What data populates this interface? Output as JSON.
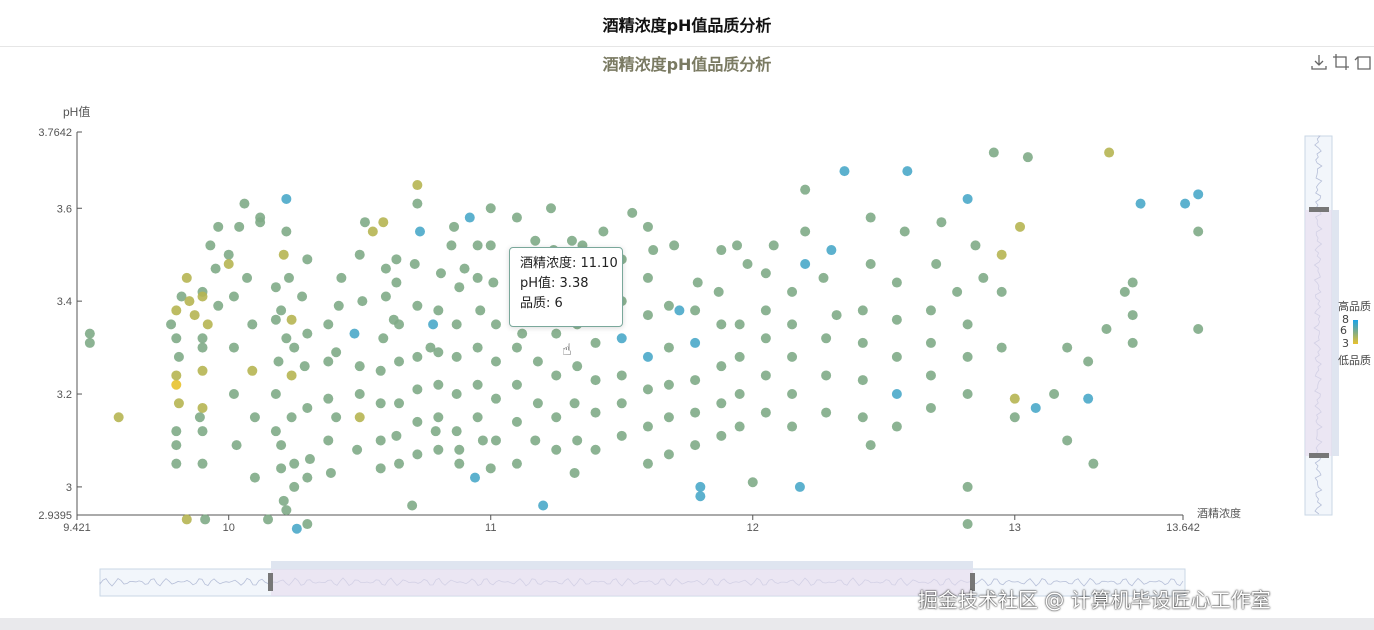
{
  "header": {
    "title": "酒精浓度pH值品质分析"
  },
  "chart_data": {
    "type": "scatter",
    "title": "酒精浓度pH值品质分析",
    "xlabel": "酒精浓度",
    "ylabel": "pH值",
    "xlim": [
      9.421,
      13.642
    ],
    "ylim": [
      2.9395,
      3.7642
    ],
    "x_ticks": [
      "9.421",
      "10",
      "11",
      "12",
      "13",
      "13.642"
    ],
    "y_ticks": [
      "2.9395",
      "3",
      "3.2",
      "3.4",
      "3.6",
      "3.7642"
    ],
    "grid": false,
    "colors": {
      "low": "#e8c22e",
      "mid": "#7fab87",
      "high": "#1aa3e8",
      "axis": "#555555"
    },
    "points": [
      [
        9.47,
        3.33,
        6
      ],
      [
        9.47,
        3.31,
        6
      ],
      [
        9.58,
        3.15,
        5
      ],
      [
        9.8,
        3.32,
        6
      ],
      [
        9.8,
        3.38,
        5
      ],
      [
        9.81,
        3.28,
        6
      ],
      [
        9.8,
        3.22,
        4
      ],
      [
        9.82,
        3.41,
        6
      ],
      [
        9.78,
        3.35,
        6
      ],
      [
        9.8,
        3.12,
        6
      ],
      [
        9.8,
        3.05,
        6
      ],
      [
        9.85,
        3.4,
        5
      ],
      [
        9.84,
        3.45,
        5
      ],
      [
        9.8,
        3.24,
        5
      ],
      [
        9.81,
        3.18,
        5
      ],
      [
        9.8,
        3.09,
        6
      ],
      [
        9.87,
        3.37,
        5
      ],
      [
        9.9,
        3.42,
        6
      ],
      [
        9.9,
        3.3,
        6
      ],
      [
        9.9,
        3.25,
        5
      ],
      [
        9.9,
        3.17,
        5
      ],
      [
        9.9,
        3.12,
        6
      ],
      [
        9.9,
        3.05,
        6
      ],
      [
        9.91,
        2.93,
        6
      ],
      [
        9.9,
        3.32,
        6
      ],
      [
        9.89,
        3.15,
        6
      ],
      [
        9.92,
        3.35,
        5
      ],
      [
        9.93,
        3.52,
        6
      ],
      [
        9.95,
        3.47,
        6
      ],
      [
        9.96,
        3.56,
        6
      ],
      [
        9.96,
        3.39,
        6
      ],
      [
        10.0,
        3.5,
        6
      ],
      [
        10.02,
        3.41,
        6
      ],
      [
        10.02,
        3.3,
        6
      ],
      [
        10.02,
        3.2,
        6
      ],
      [
        10.04,
        3.56,
        6
      ],
      [
        10.03,
        3.09,
        6
      ],
      [
        10.06,
        3.61,
        6
      ],
      [
        10.07,
        3.45,
        6
      ],
      [
        10.09,
        3.35,
        6
      ],
      [
        10.09,
        3.25,
        5
      ],
      [
        10.1,
        3.15,
        6
      ],
      [
        10.1,
        3.02,
        6
      ],
      [
        10.12,
        3.57,
        6
      ],
      [
        10.18,
        3.43,
        6
      ],
      [
        10.18,
        3.36,
        6
      ],
      [
        10.19,
        3.27,
        6
      ],
      [
        10.18,
        3.2,
        6
      ],
      [
        10.18,
        3.12,
        6
      ],
      [
        10.2,
        3.04,
        6
      ],
      [
        10.21,
        2.97,
        6
      ],
      [
        10.22,
        3.32,
        6
      ],
      [
        10.2,
        3.38,
        6
      ],
      [
        10.21,
        3.5,
        5
      ],
      [
        10.2,
        3.09,
        6
      ],
      [
        10.22,
        3.55,
        6
      ],
      [
        10.23,
        3.45,
        6
      ],
      [
        10.25,
        3.3,
        6
      ],
      [
        10.24,
        3.24,
        5
      ],
      [
        10.24,
        3.15,
        6
      ],
      [
        10.25,
        3.05,
        6
      ],
      [
        10.25,
        3.0,
        6
      ],
      [
        10.22,
        3.62,
        7
      ],
      [
        10.24,
        3.36,
        5
      ],
      [
        10.3,
        3.49,
        6
      ],
      [
        10.3,
        3.33,
        6
      ],
      [
        10.3,
        3.17,
        6
      ],
      [
        10.31,
        3.06,
        6
      ],
      [
        10.3,
        3.02,
        6
      ],
      [
        10.28,
        3.41,
        6
      ],
      [
        10.29,
        3.26,
        6
      ],
      [
        10.38,
        3.35,
        6
      ],
      [
        10.38,
        3.27,
        6
      ],
      [
        10.38,
        3.19,
        6
      ],
      [
        10.38,
        3.1,
        6
      ],
      [
        10.39,
        3.03,
        6
      ],
      [
        10.41,
        3.15,
        6
      ],
      [
        10.41,
        3.29,
        6
      ],
      [
        10.43,
        3.45,
        6
      ],
      [
        10.42,
        3.39,
        6
      ],
      [
        10.5,
        3.26,
        6
      ],
      [
        10.5,
        3.2,
        6
      ],
      [
        10.5,
        3.15,
        5
      ],
      [
        10.49,
        3.08,
        6
      ],
      [
        10.48,
        3.33,
        7
      ],
      [
        10.51,
        3.4,
        6
      ],
      [
        10.5,
        3.5,
        6
      ],
      [
        10.52,
        3.57,
        6
      ],
      [
        10.58,
        3.25,
        6
      ],
      [
        10.58,
        3.18,
        6
      ],
      [
        10.58,
        3.1,
        6
      ],
      [
        10.58,
        3.04,
        6
      ],
      [
        10.59,
        3.32,
        6
      ],
      [
        10.6,
        3.41,
        6
      ],
      [
        10.6,
        3.47,
        6
      ],
      [
        10.59,
        3.57,
        5
      ],
      [
        10.65,
        3.35,
        6
      ],
      [
        10.65,
        3.27,
        6
      ],
      [
        10.65,
        3.18,
        6
      ],
      [
        10.64,
        3.11,
        6
      ],
      [
        10.65,
        3.05,
        6
      ],
      [
        10.64,
        3.49,
        6
      ],
      [
        10.64,
        3.44,
        6
      ],
      [
        10.63,
        3.36,
        6
      ],
      [
        10.72,
        3.28,
        6
      ],
      [
        10.72,
        3.21,
        6
      ],
      [
        10.72,
        3.14,
        6
      ],
      [
        10.72,
        3.07,
        6
      ],
      [
        10.72,
        3.39,
        6
      ],
      [
        10.71,
        3.48,
        6
      ],
      [
        10.73,
        3.55,
        7
      ],
      [
        10.72,
        3.65,
        5
      ],
      [
        10.72,
        3.61,
        6
      ],
      [
        10.8,
        3.38,
        6
      ],
      [
        10.8,
        3.29,
        6
      ],
      [
        10.8,
        3.22,
        6
      ],
      [
        10.8,
        3.15,
        6
      ],
      [
        10.8,
        3.08,
        6
      ],
      [
        10.81,
        3.46,
        6
      ],
      [
        10.78,
        3.35,
        7
      ],
      [
        10.79,
        3.12,
        6
      ],
      [
        10.87,
        3.35,
        6
      ],
      [
        10.87,
        3.28,
        6
      ],
      [
        10.87,
        3.2,
        6
      ],
      [
        10.87,
        3.12,
        6
      ],
      [
        10.88,
        3.05,
        6
      ],
      [
        10.88,
        3.43,
        6
      ],
      [
        10.86,
        3.56,
        6
      ],
      [
        10.9,
        3.47,
        6
      ],
      [
        10.95,
        3.3,
        6
      ],
      [
        10.95,
        3.22,
        6
      ],
      [
        10.95,
        3.15,
        6
      ],
      [
        10.94,
        3.02,
        7
      ],
      [
        10.96,
        3.38,
        6
      ],
      [
        10.95,
        3.45,
        6
      ],
      [
        10.95,
        3.52,
        6
      ],
      [
        10.97,
        3.1,
        6
      ],
      [
        11.02,
        3.35,
        6
      ],
      [
        11.02,
        3.27,
        6
      ],
      [
        11.02,
        3.19,
        6
      ],
      [
        11.02,
        3.1,
        6
      ],
      [
        11.01,
        3.44,
        6
      ],
      [
        11.0,
        3.52,
        6
      ],
      [
        11.0,
        3.04,
        6
      ],
      [
        11.1,
        3.38,
        6
      ],
      [
        11.1,
        3.3,
        6
      ],
      [
        11.1,
        3.22,
        6
      ],
      [
        11.1,
        3.14,
        6
      ],
      [
        11.1,
        3.05,
        6
      ],
      [
        11.09,
        3.46,
        6
      ],
      [
        11.1,
        3.58,
        6
      ],
      [
        11.18,
        3.36,
        6
      ],
      [
        11.18,
        3.27,
        6
      ],
      [
        11.18,
        3.18,
        6
      ],
      [
        11.17,
        3.1,
        6
      ],
      [
        11.18,
        3.45,
        6
      ],
      [
        11.2,
        2.96,
        7
      ],
      [
        11.17,
        3.53,
        6
      ],
      [
        11.25,
        3.33,
        6
      ],
      [
        11.25,
        3.24,
        6
      ],
      [
        11.25,
        3.15,
        6
      ],
      [
        11.25,
        3.08,
        6
      ],
      [
        11.25,
        3.42,
        6
      ],
      [
        11.24,
        3.51,
        6
      ],
      [
        11.33,
        3.35,
        6
      ],
      [
        11.33,
        3.26,
        6
      ],
      [
        11.32,
        3.18,
        6
      ],
      [
        11.33,
        3.1,
        6
      ],
      [
        11.33,
        3.43,
        6
      ],
      [
        11.31,
        3.53,
        6
      ],
      [
        11.32,
        3.03,
        6
      ],
      [
        11.4,
        3.31,
        6
      ],
      [
        11.4,
        3.23,
        6
      ],
      [
        11.4,
        3.16,
        6
      ],
      [
        11.4,
        3.08,
        6
      ],
      [
        11.4,
        3.39,
        6
      ],
      [
        11.4,
        3.48,
        6
      ],
      [
        11.43,
        3.55,
        6
      ],
      [
        11.5,
        3.32,
        7
      ],
      [
        11.5,
        3.24,
        6
      ],
      [
        11.5,
        3.18,
        6
      ],
      [
        11.5,
        3.11,
        6
      ],
      [
        11.5,
        3.4,
        6
      ],
      [
        11.5,
        3.49,
        6
      ],
      [
        11.54,
        3.59,
        6
      ],
      [
        11.6,
        3.28,
        7
      ],
      [
        11.6,
        3.21,
        6
      ],
      [
        11.6,
        3.13,
        6
      ],
      [
        11.6,
        3.37,
        6
      ],
      [
        11.6,
        3.45,
        6
      ],
      [
        11.62,
        3.51,
        6
      ],
      [
        11.6,
        3.05,
        6
      ],
      [
        11.68,
        3.3,
        6
      ],
      [
        11.68,
        3.22,
        6
      ],
      [
        11.68,
        3.15,
        6
      ],
      [
        11.68,
        3.39,
        6
      ],
      [
        11.7,
        3.52,
        6
      ],
      [
        11.68,
        3.07,
        6
      ],
      [
        11.78,
        3.31,
        7
      ],
      [
        11.78,
        3.23,
        6
      ],
      [
        11.78,
        3.16,
        6
      ],
      [
        11.78,
        3.09,
        6
      ],
      [
        11.78,
        3.38,
        6
      ],
      [
        11.79,
        3.44,
        6
      ],
      [
        11.8,
        3.0,
        7
      ],
      [
        11.8,
        2.98,
        7
      ],
      [
        11.88,
        3.35,
        6
      ],
      [
        11.88,
        3.26,
        6
      ],
      [
        11.88,
        3.18,
        6
      ],
      [
        11.88,
        3.11,
        6
      ],
      [
        11.87,
        3.42,
        6
      ],
      [
        11.88,
        3.51,
        6
      ],
      [
        11.95,
        3.28,
        6
      ],
      [
        11.95,
        3.2,
        6
      ],
      [
        11.95,
        3.13,
        6
      ],
      [
        11.95,
        3.35,
        6
      ],
      [
        11.98,
        3.48,
        6
      ],
      [
        11.94,
        3.52,
        6
      ],
      [
        12.0,
        3.01,
        6
      ],
      [
        12.05,
        3.32,
        6
      ],
      [
        12.05,
        3.24,
        6
      ],
      [
        12.05,
        3.16,
        6
      ],
      [
        12.05,
        3.38,
        6
      ],
      [
        12.05,
        3.46,
        6
      ],
      [
        12.08,
        3.52,
        6
      ],
      [
        12.15,
        3.28,
        6
      ],
      [
        12.15,
        3.2,
        6
      ],
      [
        12.15,
        3.13,
        6
      ],
      [
        12.15,
        3.35,
        6
      ],
      [
        12.15,
        3.42,
        6
      ],
      [
        12.2,
        3.48,
        7
      ],
      [
        12.2,
        3.55,
        6
      ],
      [
        12.2,
        3.64,
        6
      ],
      [
        12.18,
        3.0,
        7
      ],
      [
        12.28,
        3.32,
        6
      ],
      [
        12.28,
        3.24,
        6
      ],
      [
        12.28,
        3.16,
        6
      ],
      [
        12.27,
        3.45,
        6
      ],
      [
        12.3,
        3.51,
        7
      ],
      [
        12.35,
        3.68,
        7
      ],
      [
        12.32,
        3.37,
        6
      ],
      [
        12.42,
        3.31,
        6
      ],
      [
        12.42,
        3.23,
        6
      ],
      [
        12.42,
        3.15,
        6
      ],
      [
        12.42,
        3.38,
        6
      ],
      [
        12.45,
        3.48,
        6
      ],
      [
        12.45,
        3.58,
        6
      ],
      [
        12.45,
        3.09,
        6
      ],
      [
        12.55,
        3.28,
        6
      ],
      [
        12.55,
        3.2,
        7
      ],
      [
        12.55,
        3.13,
        6
      ],
      [
        12.55,
        3.36,
        6
      ],
      [
        12.55,
        3.44,
        6
      ],
      [
        12.58,
        3.55,
        6
      ],
      [
        12.59,
        3.68,
        7
      ],
      [
        12.68,
        3.31,
        6
      ],
      [
        12.68,
        3.24,
        6
      ],
      [
        12.68,
        3.17,
        6
      ],
      [
        12.68,
        3.38,
        6
      ],
      [
        12.7,
        3.48,
        6
      ],
      [
        12.72,
        3.57,
        6
      ],
      [
        12.78,
        3.42,
        6
      ],
      [
        12.82,
        3.35,
        6
      ],
      [
        12.82,
        3.28,
        6
      ],
      [
        12.82,
        3.2,
        6
      ],
      [
        12.85,
        3.52,
        6
      ],
      [
        12.82,
        3.62,
        7
      ],
      [
        12.82,
        3.0,
        6
      ],
      [
        12.82,
        2.92,
        6
      ],
      [
        12.88,
        3.45,
        6
      ],
      [
        12.95,
        3.42,
        6
      ],
      [
        12.95,
        3.3,
        6
      ],
      [
        12.95,
        3.5,
        5
      ],
      [
        12.92,
        3.72,
        6
      ],
      [
        13.0,
        3.19,
        5
      ],
      [
        13.0,
        3.15,
        6
      ],
      [
        13.08,
        3.17,
        7
      ],
      [
        13.02,
        3.56,
        5
      ],
      [
        13.05,
        3.71,
        6
      ],
      [
        13.15,
        3.2,
        6
      ],
      [
        13.2,
        3.3,
        6
      ],
      [
        13.2,
        3.1,
        6
      ],
      [
        13.28,
        3.27,
        6
      ],
      [
        13.28,
        3.19,
        7
      ],
      [
        13.3,
        3.05,
        6
      ],
      [
        13.35,
        3.34,
        6
      ],
      [
        13.36,
        3.72,
        5
      ],
      [
        13.42,
        3.42,
        6
      ],
      [
        13.45,
        3.44,
        6
      ],
      [
        13.45,
        3.37,
        6
      ],
      [
        13.45,
        3.31,
        6
      ],
      [
        13.48,
        3.61,
        7
      ],
      [
        13.65,
        3.61,
        7
      ],
      [
        13.7,
        3.63,
        7
      ],
      [
        13.7,
        3.55,
        6
      ],
      [
        13.7,
        3.34,
        6
      ],
      [
        9.84,
        2.93,
        5
      ],
      [
        9.9,
        3.41,
        5
      ],
      [
        10.0,
        3.48,
        5
      ],
      [
        10.12,
        3.58,
        6
      ],
      [
        10.15,
        2.93,
        6
      ],
      [
        10.22,
        2.95,
        6
      ],
      [
        10.26,
        2.91,
        7
      ],
      [
        10.3,
        2.92,
        6
      ],
      [
        10.7,
        2.96,
        6
      ],
      [
        10.88,
        3.08,
        6
      ],
      [
        10.92,
        3.58,
        7
      ],
      [
        11.12,
        3.33,
        6
      ],
      [
        11.23,
        3.6,
        6
      ],
      [
        11.35,
        3.52,
        6
      ],
      [
        11.6,
        3.56,
        6
      ],
      [
        11.72,
        3.38,
        7
      ],
      [
        10.55,
        3.55,
        5
      ],
      [
        10.77,
        3.3,
        6
      ],
      [
        10.85,
        3.52,
        6
      ],
      [
        11.0,
        3.6,
        6
      ]
    ]
  },
  "tooltip": {
    "line1": "酒精浓度: 11.10",
    "line2": "pH值: 3.38",
    "line3": "品质: 6"
  },
  "visual_map": {
    "top_label": "高品质",
    "bottom_label": "低品质",
    "values": [
      "8",
      "6",
      "3"
    ]
  },
  "toolbox": {
    "icons": [
      "download-icon",
      "crop-icon",
      "restore-icon"
    ]
  },
  "watermark": "掘金技术社区 @ 计算机毕设匠心工作室"
}
